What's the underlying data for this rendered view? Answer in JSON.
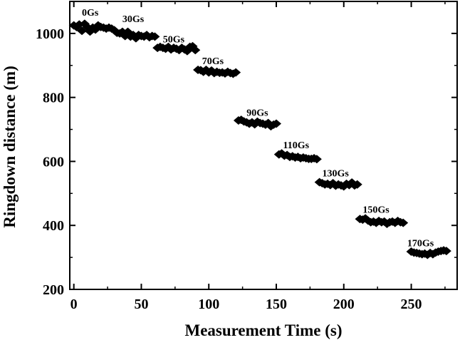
{
  "chart_data": {
    "type": "scatter",
    "xlabel": "Measurement Time (s)",
    "ylabel": "Ringdown distance  (m)",
    "xlim": [
      -3,
      284
    ],
    "ylim": [
      200,
      1100
    ],
    "xticks": [
      0,
      50,
      100,
      150,
      200,
      250
    ],
    "yticks": [
      200,
      400,
      600,
      800,
      1000
    ],
    "marker": "diamond",
    "color": "#000000",
    "annotations": [
      {
        "text": "0Gs",
        "x": 6,
        "y": 1055
      },
      {
        "text": "30Gs",
        "x": 36,
        "y": 1035
      },
      {
        "text": "50Gs",
        "x": 66,
        "y": 972
      },
      {
        "text": "70Gs",
        "x": 95,
        "y": 904
      },
      {
        "text": "90Gs",
        "x": 128,
        "y": 742
      },
      {
        "text": "110Gs",
        "x": 155,
        "y": 641
      },
      {
        "text": "130Gs",
        "x": 184,
        "y": 553
      },
      {
        "text": "150Gs",
        "x": 214,
        "y": 440
      },
      {
        "text": "170Gs",
        "x": 247,
        "y": 335
      }
    ],
    "series": [
      {
        "values": [
          {
            "x": 0,
            "y": 1025
          },
          {
            "x": 2,
            "y": 1020
          },
          {
            "x": 4,
            "y": 1028
          },
          {
            "x": 6,
            "y": 1008
          },
          {
            "x": 8,
            "y": 1030
          },
          {
            "x": 10,
            "y": 1020
          },
          {
            "x": 12,
            "y": 1006
          },
          {
            "x": 14,
            "y": 1018
          },
          {
            "x": 16,
            "y": 1012
          },
          {
            "x": 18,
            "y": 1025
          },
          {
            "x": 20,
            "y": 1020
          },
          {
            "x": 22,
            "y": 1018
          },
          {
            "x": 24,
            "y": 1015
          },
          {
            "x": 26,
            "y": 1018
          },
          {
            "x": 28,
            "y": 1015
          },
          {
            "x": 30,
            "y": 1010
          },
          {
            "x": 32,
            "y": 1002
          },
          {
            "x": 34,
            "y": 1000
          },
          {
            "x": 36,
            "y": 1005
          },
          {
            "x": 38,
            "y": 992
          },
          {
            "x": 40,
            "y": 1005
          },
          {
            "x": 42,
            "y": 990
          },
          {
            "x": 44,
            "y": 995
          },
          {
            "x": 46,
            "y": 985
          },
          {
            "x": 48,
            "y": 995
          },
          {
            "x": 50,
            "y": 992
          },
          {
            "x": 52,
            "y": 990
          },
          {
            "x": 54,
            "y": 995
          },
          {
            "x": 56,
            "y": 988
          },
          {
            "x": 58,
            "y": 992
          },
          {
            "x": 60,
            "y": 990
          },
          {
            "x": 62,
            "y": 955
          },
          {
            "x": 64,
            "y": 958
          },
          {
            "x": 66,
            "y": 955
          },
          {
            "x": 68,
            "y": 952
          },
          {
            "x": 70,
            "y": 958
          },
          {
            "x": 72,
            "y": 950
          },
          {
            "x": 74,
            "y": 955
          },
          {
            "x": 76,
            "y": 952
          },
          {
            "x": 78,
            "y": 948
          },
          {
            "x": 80,
            "y": 955
          },
          {
            "x": 82,
            "y": 950
          },
          {
            "x": 84,
            "y": 945
          },
          {
            "x": 86,
            "y": 958
          },
          {
            "x": 88,
            "y": 960
          },
          {
            "x": 90,
            "y": 948
          },
          {
            "x": 92,
            "y": 886
          },
          {
            "x": 94,
            "y": 885
          },
          {
            "x": 96,
            "y": 880
          },
          {
            "x": 98,
            "y": 886
          },
          {
            "x": 100,
            "y": 878
          },
          {
            "x": 102,
            "y": 884
          },
          {
            "x": 104,
            "y": 876
          },
          {
            "x": 106,
            "y": 880
          },
          {
            "x": 108,
            "y": 877
          },
          {
            "x": 110,
            "y": 878
          },
          {
            "x": 112,
            "y": 875
          },
          {
            "x": 114,
            "y": 880
          },
          {
            "x": 116,
            "y": 876
          },
          {
            "x": 118,
            "y": 874
          },
          {
            "x": 120,
            "y": 878
          },
          {
            "x": 122,
            "y": 728
          },
          {
            "x": 124,
            "y": 730
          },
          {
            "x": 126,
            "y": 725
          },
          {
            "x": 128,
            "y": 722
          },
          {
            "x": 130,
            "y": 718
          },
          {
            "x": 132,
            "y": 722
          },
          {
            "x": 134,
            "y": 716
          },
          {
            "x": 136,
            "y": 724
          },
          {
            "x": 138,
            "y": 720
          },
          {
            "x": 140,
            "y": 718
          },
          {
            "x": 142,
            "y": 715
          },
          {
            "x": 144,
            "y": 720
          },
          {
            "x": 146,
            "y": 710
          },
          {
            "x": 148,
            "y": 715
          },
          {
            "x": 150,
            "y": 718
          },
          {
            "x": 152,
            "y": 622
          },
          {
            "x": 154,
            "y": 625
          },
          {
            "x": 156,
            "y": 618
          },
          {
            "x": 158,
            "y": 620
          },
          {
            "x": 160,
            "y": 614
          },
          {
            "x": 162,
            "y": 616
          },
          {
            "x": 164,
            "y": 612
          },
          {
            "x": 166,
            "y": 614
          },
          {
            "x": 168,
            "y": 610
          },
          {
            "x": 170,
            "y": 612
          },
          {
            "x": 172,
            "y": 610
          },
          {
            "x": 174,
            "y": 608
          },
          {
            "x": 176,
            "y": 608
          },
          {
            "x": 178,
            "y": 610
          },
          {
            "x": 180,
            "y": 607
          },
          {
            "x": 182,
            "y": 535
          },
          {
            "x": 184,
            "y": 532
          },
          {
            "x": 186,
            "y": 528
          },
          {
            "x": 188,
            "y": 530
          },
          {
            "x": 190,
            "y": 526
          },
          {
            "x": 192,
            "y": 532
          },
          {
            "x": 194,
            "y": 524
          },
          {
            "x": 196,
            "y": 528
          },
          {
            "x": 198,
            "y": 525
          },
          {
            "x": 200,
            "y": 522
          },
          {
            "x": 202,
            "y": 530
          },
          {
            "x": 204,
            "y": 526
          },
          {
            "x": 206,
            "y": 534
          },
          {
            "x": 208,
            "y": 525
          },
          {
            "x": 210,
            "y": 528
          },
          {
            "x": 212,
            "y": 420
          },
          {
            "x": 214,
            "y": 418
          },
          {
            "x": 216,
            "y": 422
          },
          {
            "x": 218,
            "y": 415
          },
          {
            "x": 220,
            "y": 410
          },
          {
            "x": 222,
            "y": 412
          },
          {
            "x": 224,
            "y": 408
          },
          {
            "x": 226,
            "y": 414
          },
          {
            "x": 228,
            "y": 410
          },
          {
            "x": 230,
            "y": 412
          },
          {
            "x": 232,
            "y": 405
          },
          {
            "x": 234,
            "y": 410
          },
          {
            "x": 236,
            "y": 412
          },
          {
            "x": 238,
            "y": 408
          },
          {
            "x": 240,
            "y": 414
          },
          {
            "x": 242,
            "y": 410
          },
          {
            "x": 244,
            "y": 408
          },
          {
            "x": 250,
            "y": 318
          },
          {
            "x": 252,
            "y": 315
          },
          {
            "x": 254,
            "y": 314
          },
          {
            "x": 256,
            "y": 312
          },
          {
            "x": 258,
            "y": 310
          },
          {
            "x": 260,
            "y": 312
          },
          {
            "x": 262,
            "y": 308
          },
          {
            "x": 264,
            "y": 314
          },
          {
            "x": 266,
            "y": 310
          },
          {
            "x": 268,
            "y": 315
          },
          {
            "x": 270,
            "y": 318
          },
          {
            "x": 272,
            "y": 320
          },
          {
            "x": 274,
            "y": 322
          },
          {
            "x": 276,
            "y": 320
          }
        ]
      }
    ]
  }
}
